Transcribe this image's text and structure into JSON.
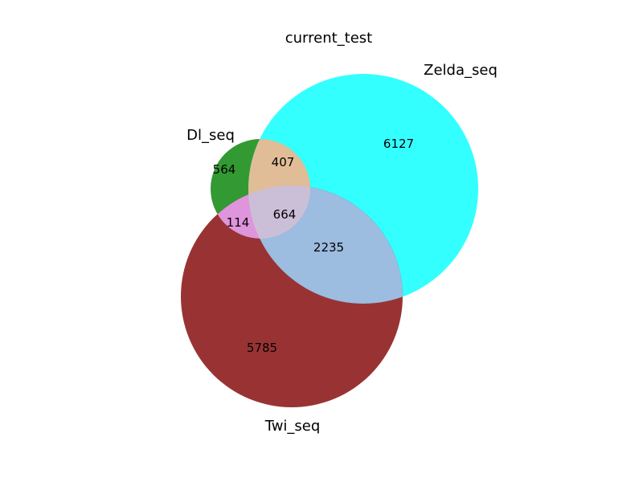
{
  "chart_data": {
    "type": "venn3",
    "title": "current_test",
    "sets": [
      {
        "name": "Dl_seq",
        "color": "#008000"
      },
      {
        "name": "Zelda_seq",
        "color": "#00ffff"
      },
      {
        "name": "Twi_seq",
        "color": "#800000"
      }
    ],
    "regions": {
      "Dl_only": 564,
      "Zelda_only": 6127,
      "Twi_only": 5785,
      "Dl_Zelda": 407,
      "Dl_Twi": 114,
      "Zelda_Twi": 2235,
      "Dl_Zelda_Twi": 664
    },
    "region_colors": {
      "Dl_Zelda": "#e0bd97",
      "Dl_Twi": "#de95dc",
      "Zelda_Twi": "#9cbce0",
      "Dl_Zelda_Twi": "#cbbfd8"
    }
  }
}
